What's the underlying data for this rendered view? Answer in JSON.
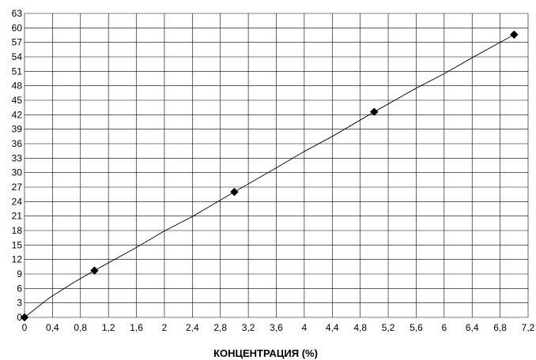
{
  "chart_data": {
    "type": "scatter",
    "title": "",
    "xlabel": "КОНЦЕНТРАЦИЯ (%)",
    "ylabel": "",
    "xlim": [
      0,
      7.2
    ],
    "ylim": [
      0,
      63
    ],
    "x_ticks": [
      "0",
      "0,4",
      "0,8",
      "1,2",
      "1,6",
      "2",
      "2,4",
      "2,8",
      "3,2",
      "3,6",
      "4",
      "4,4",
      "4,8",
      "5,2",
      "5,6",
      "6",
      "6,4",
      "6,8",
      "7,2"
    ],
    "y_ticks": [
      "0",
      "3",
      "6",
      "9",
      "12",
      "15",
      "18",
      "21",
      "24",
      "27",
      "30",
      "33",
      "36",
      "39",
      "42",
      "45",
      "48",
      "51",
      "54",
      "57",
      "60",
      "63"
    ],
    "grid": true,
    "legend": "none",
    "series": [
      {
        "marker": "diamond",
        "color": "#000000",
        "points": [
          {
            "x": 0,
            "y": 0
          },
          {
            "x": 1,
            "y": 9.7
          },
          {
            "x": 3,
            "y": 26
          },
          {
            "x": 5,
            "y": 42.6
          },
          {
            "x": 7,
            "y": 58.6
          }
        ]
      }
    ],
    "trend_line": {
      "color": "#000000",
      "points": [
        {
          "x": 0,
          "y": 0
        },
        {
          "x": 0.35,
          "y": 4
        },
        {
          "x": 0.7,
          "y": 7.2
        },
        {
          "x": 1,
          "y": 9.7
        },
        {
          "x": 1.6,
          "y": 14.5
        },
        {
          "x": 2,
          "y": 17.9
        },
        {
          "x": 2.4,
          "y": 20.9
        },
        {
          "x": 3,
          "y": 26
        },
        {
          "x": 3.6,
          "y": 31
        },
        {
          "x": 4,
          "y": 34.4
        },
        {
          "x": 4.4,
          "y": 37.5
        },
        {
          "x": 5,
          "y": 42.6
        },
        {
          "x": 5.6,
          "y": 47.5
        },
        {
          "x": 6,
          "y": 50.5
        },
        {
          "x": 6.4,
          "y": 53.8
        },
        {
          "x": 7,
          "y": 58.6
        }
      ]
    }
  }
}
